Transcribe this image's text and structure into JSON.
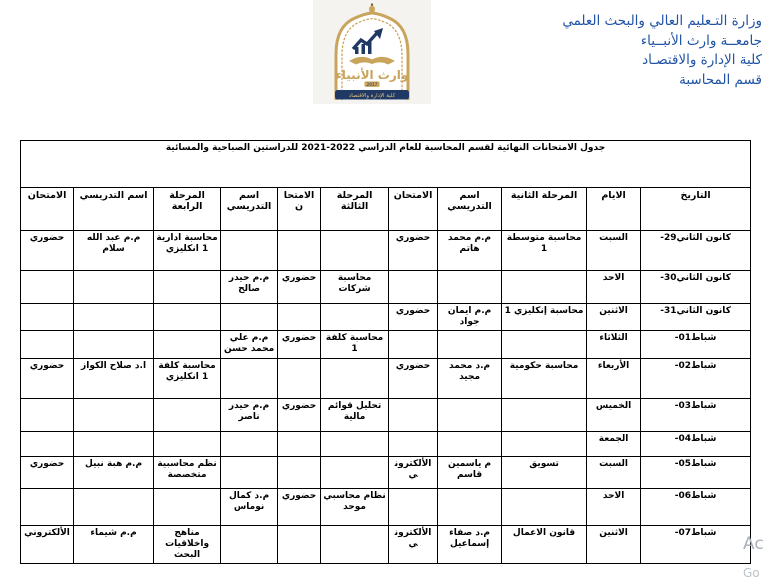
{
  "letterhead": {
    "lines": [
      "وزارة التـعليم العالي والبحث العلمي",
      "جامعــة وارث الأنبــياء",
      "كلية الإدارة والاقتصـاد",
      "قسم المحاسبة"
    ],
    "text_color": "#2053a4"
  },
  "logo": {
    "calligraphy": "وارث الأنبياء",
    "year": "2017",
    "banner_text": "كلية الإدارة والاقتصاد",
    "gold": "#c9a45c",
    "navy": "#203864"
  },
  "table": {
    "title": "جدول الامتحانات النهائية لقسم المحاسبة للعام الدراسي 2022-2021 للدراستين الصباحية والمسائية",
    "columns": [
      {
        "key": "date",
        "label": "التاريخ"
      },
      {
        "key": "day",
        "label": "الايام"
      },
      {
        "key": "s2_subject",
        "label": "المرحلة الثانية"
      },
      {
        "key": "s2_teacher",
        "label": "اسم التدريسي"
      },
      {
        "key": "s2_exam",
        "label": "الامتحان"
      },
      {
        "key": "s3_subject",
        "label": "المرحلة الثالثة"
      },
      {
        "key": "s3_exam",
        "label": "الامتحان"
      },
      {
        "key": "s3_teacher",
        "label": "اسم التدريسي"
      },
      {
        "key": "s4_subject",
        "label": "المرحلة الرابعة"
      },
      {
        "key": "s4_teacher",
        "label": "اسم التدريسي"
      },
      {
        "key": "s4_exam",
        "label": "الامتحان"
      }
    ],
    "rows": [
      {
        "date": "-29كانون الثاني",
        "day": "السبت",
        "s2_subject": "محاسبة متوسطة 1",
        "s2_teacher": "م.م محمد هاتم",
        "s2_exam": "حضوري",
        "s3_subject": "",
        "s3_exam": "",
        "s3_teacher": "",
        "s4_subject": "محاسبة ادارية 1 انكليزي",
        "s4_teacher": "م.م عبد الله سلام",
        "s4_exam": "حضوري"
      },
      {
        "date": "-30كانون الثاني",
        "day": "الاحد",
        "s2_subject": "",
        "s2_teacher": "",
        "s2_exam": "",
        "s3_subject": "محاسبة شركات",
        "s3_exam": "حضوري",
        "s3_teacher": "م.م حيدر صالح",
        "s4_subject": "",
        "s4_teacher": "",
        "s4_exam": ""
      },
      {
        "date": "-31كانون الثاني",
        "day": "الاثنين",
        "s2_subject": "محاسبة إنكليزي 1",
        "s2_teacher": "م.م ايمان جواد",
        "s2_exam": "حضوري",
        "s3_subject": "",
        "s3_exam": "",
        "s3_teacher": "",
        "s4_subject": "",
        "s4_teacher": "",
        "s4_exam": ""
      },
      {
        "date": "-01شباط",
        "day": "الثلاثاء",
        "s2_subject": "",
        "s2_teacher": "",
        "s2_exam": "",
        "s3_subject": "محاسبة كلفة 1",
        "s3_exam": "حضوري",
        "s3_teacher": "م.م علي محمد حسن",
        "s4_subject": "",
        "s4_teacher": "",
        "s4_exam": ""
      },
      {
        "date": "-02شباط",
        "day": "الأربعاء",
        "s2_subject": "محاسبة حكومية",
        "s2_teacher": "م.د محمد مجيد",
        "s2_exam": "حضوري",
        "s3_subject": "",
        "s3_exam": "",
        "s3_teacher": "",
        "s4_subject": "محاسبة كلفة 1 انكليزي",
        "s4_teacher": "ا.د صلاح الكواز",
        "s4_exam": "حضوري"
      },
      {
        "date": "-03شباط",
        "day": "الخميس",
        "s2_subject": "",
        "s2_teacher": "",
        "s2_exam": "",
        "s3_subject": "تحليل قوائم مالية",
        "s3_exam": "حضوري",
        "s3_teacher": "م.م حيدر ناصر",
        "s4_subject": "",
        "s4_teacher": "",
        "s4_exam": ""
      },
      {
        "date": "-04شباط",
        "day": "الجمعة",
        "s2_subject": "",
        "s2_teacher": "",
        "s2_exam": "",
        "s3_subject": "",
        "s3_exam": "",
        "s3_teacher": "",
        "s4_subject": "",
        "s4_teacher": "",
        "s4_exam": ""
      },
      {
        "date": "-05شباط",
        "day": "السبت",
        "s2_subject": "تسويق",
        "s2_teacher": "م ياسمين قاسم",
        "s2_exam": "الألكتروني",
        "s3_subject": "",
        "s3_exam": "",
        "s3_teacher": "",
        "s4_subject": "نظم محاسبية متخصصة",
        "s4_teacher": "م.م هبة نبيل",
        "s4_exam": "حضوري"
      },
      {
        "date": "-06شباط",
        "day": "الاحد",
        "s2_subject": "",
        "s2_teacher": "",
        "s2_exam": "",
        "s3_subject": "نظام محاسبي موحد",
        "s3_exam": "حضوري",
        "s3_teacher": "م.د كمال نوماس",
        "s4_subject": "",
        "s4_teacher": "",
        "s4_exam": ""
      },
      {
        "date": "-07شباط",
        "day": "الاثنين",
        "s2_subject": "قانون الاعمال",
        "s2_teacher": "م.د صفاء إسماعيل",
        "s2_exam": "الألكتروني",
        "s3_subject": "",
        "s3_exam": "",
        "s3_teacher": "",
        "s4_subject": "مناهج واخلاقيات البحث",
        "s4_teacher": "م.م شيماء",
        "s4_exam": "الألكتروني"
      }
    ]
  },
  "watermark": {
    "line1": "Ac",
    "line2": "Go"
  }
}
